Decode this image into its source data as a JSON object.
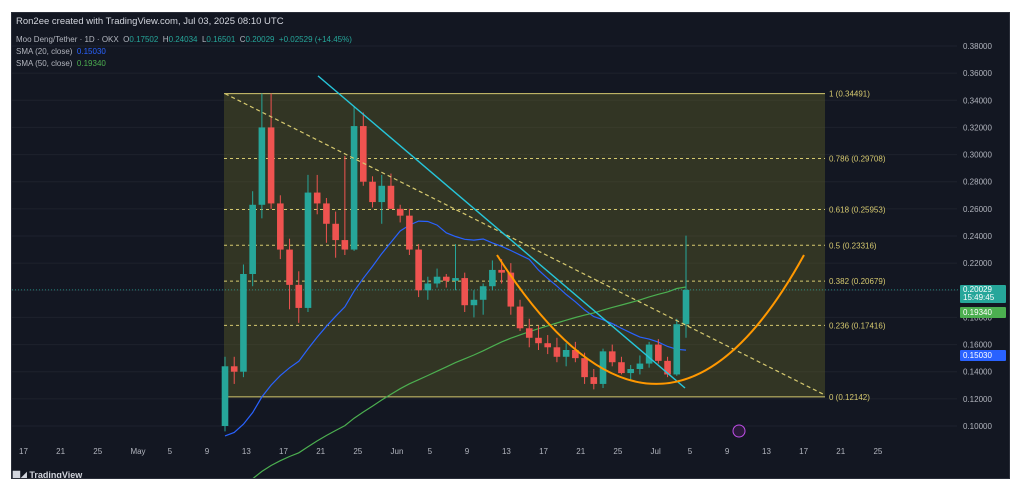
{
  "header": "Ron2ee created with TradingView.com, Jul 03, 2025 08:10 UTC",
  "legend": {
    "symbol": "Moo Deng/Tether · 1D · OKX",
    "open_label": "O",
    "open": "0.17502",
    "high_label": "H",
    "high": "0.24034",
    "low_label": "L",
    "low": "0.16501",
    "close_label": "C",
    "close": "0.20029",
    "change": "+0.02529 (+14.45%)",
    "sma20_label": "SMA (20, close)",
    "sma20_value": "0.15030",
    "sma50_label": "SMA (50, close)",
    "sma50_value": "0.19340"
  },
  "price_axis": {
    "ticks": [
      "0.38000",
      "0.36000",
      "0.34000",
      "0.32000",
      "0.30000",
      "0.28000",
      "0.26000",
      "0.24000",
      "0.22000",
      "0.20000",
      "0.18000",
      "0.16000",
      "0.14000",
      "0.12000",
      "0.10000"
    ],
    "last_price": "0.20029",
    "countdown": "15:49:45",
    "sma50_tag": "0.19340",
    "sma20_tag": "0.15030"
  },
  "time_axis": {
    "labels": [
      "17",
      "21",
      "25",
      "May",
      "5",
      "9",
      "13",
      "17",
      "21",
      "25",
      "Jun",
      "5",
      "9",
      "13",
      "17",
      "21",
      "25",
      "Jul",
      "5",
      "9",
      "13",
      "17",
      "21",
      "25"
    ]
  },
  "fib_levels": [
    {
      "label": "1 (0.34491)",
      "value": 0.34491
    },
    {
      "label": "0.786 (0.29708)",
      "value": 0.29708
    },
    {
      "label": "0.618 (0.25953)",
      "value": 0.25953
    },
    {
      "label": "0.5 (0.23316)",
      "value": 0.23316
    },
    {
      "label": "0.382 (0.20679)",
      "value": 0.20679
    },
    {
      "label": "0.236 (0.17416)",
      "value": 0.17416
    },
    {
      "label": "0 (0.12142)",
      "value": 0.12142
    }
  ],
  "watermark": "TradingView",
  "colors": {
    "background": "#131722",
    "up": "#26a69a",
    "down": "#ef5350",
    "sma20": "#2962ff",
    "sma50": "#4caf50",
    "trendline": "#26c6da",
    "fib": "#d6c96f",
    "arc": "#ff9800"
  },
  "chart_data": {
    "type": "candlestick",
    "x_start": "2025-05-09",
    "candles": [
      [
        0.1,
        0.151,
        0.096,
        0.144
      ],
      [
        0.144,
        0.151,
        0.131,
        0.14
      ],
      [
        0.14,
        0.219,
        0.136,
        0.212
      ],
      [
        0.212,
        0.273,
        0.203,
        0.263
      ],
      [
        0.263,
        0.345,
        0.253,
        0.32
      ],
      [
        0.32,
        0.345,
        0.26,
        0.264
      ],
      [
        0.264,
        0.27,
        0.223,
        0.23
      ],
      [
        0.23,
        0.238,
        0.186,
        0.204
      ],
      [
        0.204,
        0.214,
        0.176,
        0.187
      ],
      [
        0.187,
        0.285,
        0.184,
        0.272
      ],
      [
        0.272,
        0.285,
        0.256,
        0.264
      ],
      [
        0.264,
        0.268,
        0.235,
        0.249
      ],
      [
        0.249,
        0.258,
        0.224,
        0.237
      ],
      [
        0.237,
        0.299,
        0.226,
        0.23
      ],
      [
        0.23,
        0.335,
        0.229,
        0.321
      ],
      [
        0.321,
        0.331,
        0.277,
        0.28
      ],
      [
        0.28,
        0.284,
        0.261,
        0.265
      ],
      [
        0.265,
        0.285,
        0.249,
        0.277
      ],
      [
        0.277,
        0.286,
        0.26,
        0.26
      ],
      [
        0.26,
        0.263,
        0.25,
        0.255
      ],
      [
        0.255,
        0.26,
        0.226,
        0.23
      ],
      [
        0.23,
        0.234,
        0.195,
        0.2
      ],
      [
        0.2,
        0.21,
        0.193,
        0.205
      ],
      [
        0.205,
        0.216,
        0.202,
        0.21
      ],
      [
        0.21,
        0.212,
        0.202,
        0.207
      ],
      [
        0.207,
        0.234,
        0.2,
        0.209
      ],
      [
        0.209,
        0.213,
        0.184,
        0.189
      ],
      [
        0.189,
        0.2,
        0.18,
        0.193
      ],
      [
        0.193,
        0.205,
        0.182,
        0.203
      ],
      [
        0.203,
        0.222,
        0.2,
        0.215
      ],
      [
        0.215,
        0.223,
        0.205,
        0.213
      ],
      [
        0.213,
        0.22,
        0.182,
        0.188
      ],
      [
        0.188,
        0.193,
        0.17,
        0.172
      ],
      [
        0.172,
        0.179,
        0.158,
        0.165
      ],
      [
        0.165,
        0.174,
        0.156,
        0.161
      ],
      [
        0.161,
        0.167,
        0.153,
        0.158
      ],
      [
        0.158,
        0.165,
        0.147,
        0.151
      ],
      [
        0.151,
        0.161,
        0.144,
        0.156
      ],
      [
        0.156,
        0.162,
        0.147,
        0.15
      ],
      [
        0.15,
        0.154,
        0.131,
        0.136
      ],
      [
        0.136,
        0.142,
        0.127,
        0.131
      ],
      [
        0.131,
        0.157,
        0.128,
        0.155
      ],
      [
        0.155,
        0.16,
        0.144,
        0.147
      ],
      [
        0.147,
        0.151,
        0.138,
        0.139
      ],
      [
        0.139,
        0.145,
        0.134,
        0.142
      ],
      [
        0.142,
        0.152,
        0.138,
        0.146
      ],
      [
        0.146,
        0.162,
        0.143,
        0.16
      ],
      [
        0.16,
        0.164,
        0.146,
        0.148
      ],
      [
        0.148,
        0.151,
        0.136,
        0.138
      ],
      [
        0.138,
        0.179,
        0.137,
        0.175
      ],
      [
        0.175,
        0.2403,
        0.165,
        0.2003
      ]
    ]
  }
}
